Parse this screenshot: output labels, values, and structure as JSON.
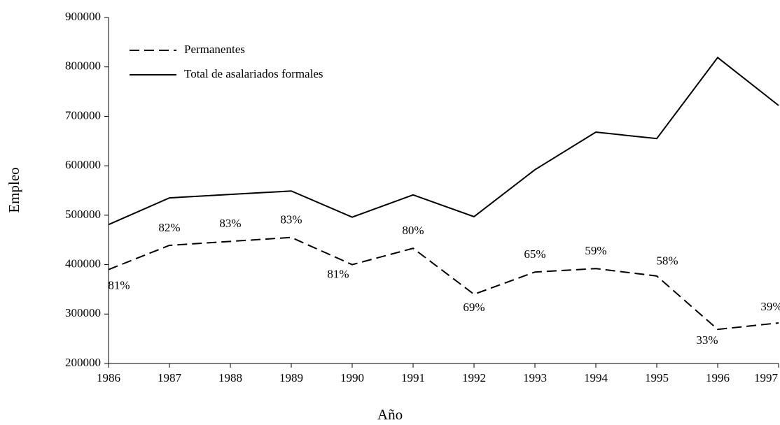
{
  "chart_data": {
    "type": "line",
    "x_label": "Año",
    "y_label": "Empleo",
    "x": [
      1986,
      1987,
      1988,
      1989,
      1990,
      1991,
      1992,
      1993,
      1994,
      1995,
      1996,
      1997
    ],
    "xlim": [
      1986,
      1997
    ],
    "xticks": [
      1986,
      1987,
      1988,
      1989,
      1990,
      1991,
      1992,
      1993,
      1994,
      1995,
      1996,
      1997
    ],
    "ylim": [
      200000,
      900000
    ],
    "yticks": [
      200000,
      300000,
      400000,
      500000,
      600000,
      700000,
      800000,
      900000
    ],
    "grid": false,
    "legend": "top-left",
    "series": [
      {
        "name": "Permanentes",
        "color": "#000000",
        "line_style": "dashed",
        "values": [
          390000,
          439000,
          447000,
          455000,
          400000,
          433000,
          340000,
          385000,
          392000,
          377000,
          269000,
          282000
        ]
      },
      {
        "name": "Total de asalariados formales",
        "color": "#000000",
        "line_style": "solid",
        "values": [
          481000,
          535000,
          542000,
          549000,
          496000,
          541000,
          497000,
          592000,
          668000,
          655000,
          819000,
          722000
        ]
      }
    ],
    "percent_labels": {
      "values": [
        81,
        82,
        83,
        83,
        81,
        80,
        69,
        65,
        59,
        58,
        33,
        39
      ],
      "value_labels": [
        "81%",
        "82%",
        "83%",
        "83%",
        "81%",
        "80%",
        "69%",
        "65%",
        "59%",
        "58%",
        "33%",
        "39%"
      ]
    }
  }
}
